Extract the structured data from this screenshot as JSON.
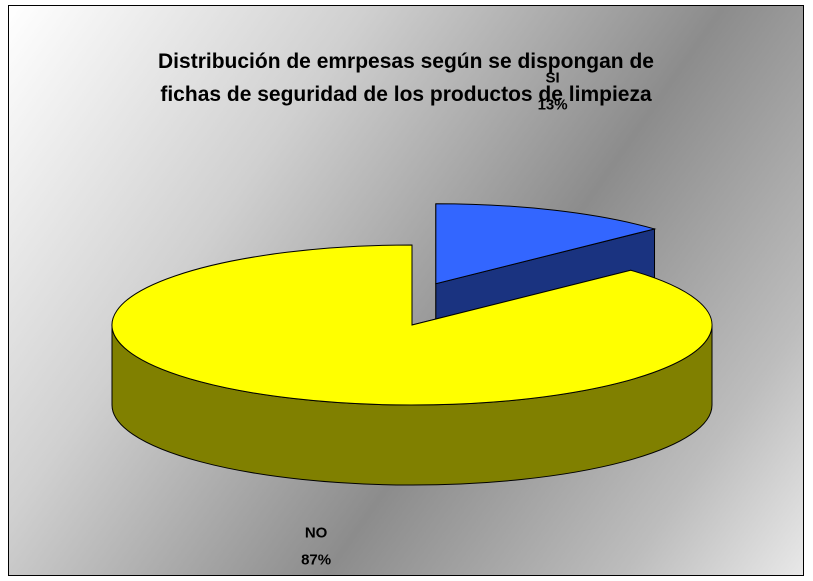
{
  "chart_data": {
    "type": "pie",
    "three_d": true,
    "title": "Distribución de emrpesas según se dispongan de fichas de seguridad de los productos de limpieza",
    "categories": [
      "SI",
      "NO"
    ],
    "values": [
      13,
      87
    ],
    "value_labels": [
      "13%",
      "87%"
    ],
    "colors": [
      "#3366ff",
      "#ffff00"
    ],
    "exploded": [
      true,
      false
    ]
  }
}
